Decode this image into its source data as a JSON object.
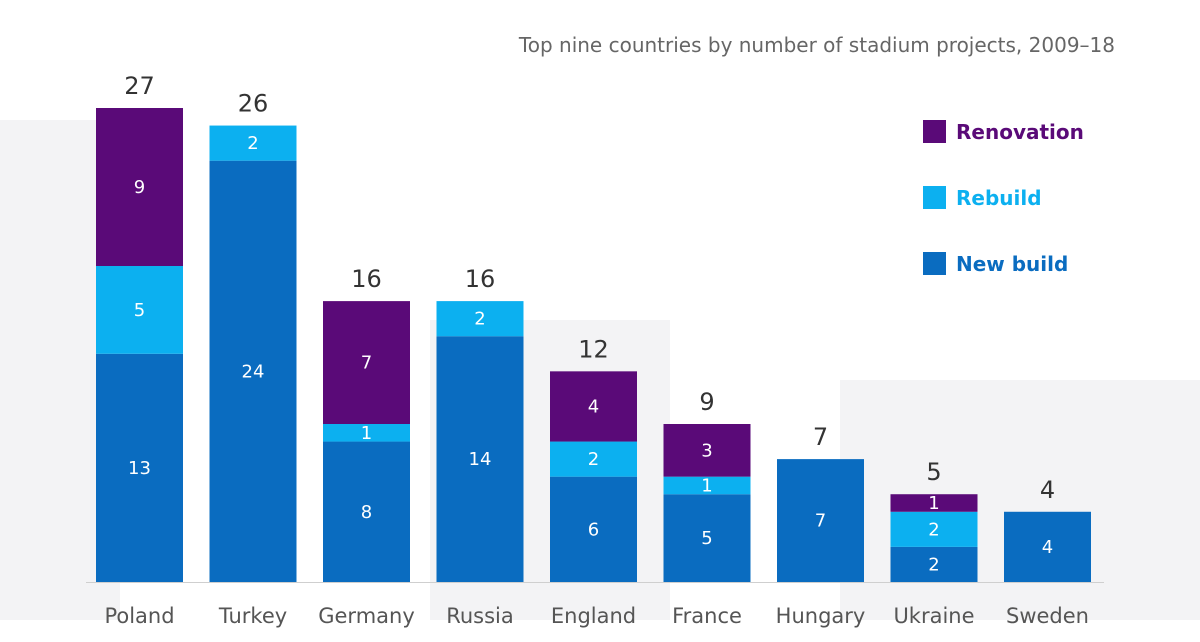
{
  "chart_data": {
    "type": "bar",
    "stacked": true,
    "title": "Top nine countries by number of stadium projects, 2009–18",
    "categories": [
      "Poland",
      "Turkey",
      "Germany",
      "Russia",
      "England",
      "France",
      "Hungary",
      "Ukraine",
      "Sweden"
    ],
    "highlighted_category": "Hungary",
    "totals": [
      27,
      26,
      16,
      16,
      12,
      9,
      7,
      5,
      4
    ],
    "series": [
      {
        "name": "New build",
        "color": "#0a6cc0",
        "values": [
          13,
          24,
          8,
          14,
          6,
          5,
          7,
          2,
          4
        ]
      },
      {
        "name": "Rebuild",
        "color": "#0cb0f0",
        "values": [
          5,
          2,
          1,
          2,
          2,
          1,
          0,
          2,
          0
        ]
      },
      {
        "name": "Renovation",
        "color": "#5a0a78",
        "values": [
          9,
          0,
          7,
          0,
          4,
          3,
          0,
          1,
          0
        ]
      }
    ],
    "legend_order": [
      "Renovation",
      "Rebuild",
      "New build"
    ],
    "legend_position": "top-right",
    "ylim": [
      0,
      27
    ],
    "grid": false,
    "colors": {
      "category_text": "#555555",
      "highlight_text": "#e85a5a",
      "total_text": "#333333",
      "title_text": "#666666"
    }
  }
}
